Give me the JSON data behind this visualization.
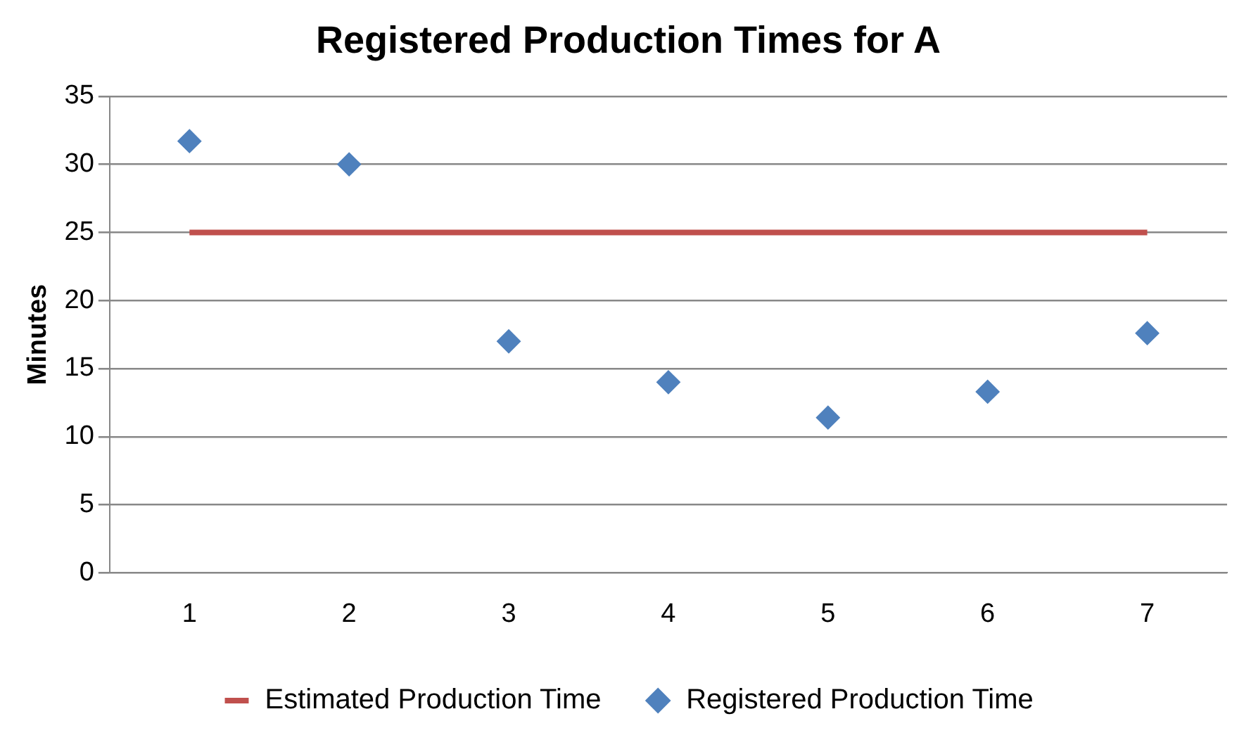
{
  "chart_data": {
    "type": "scatter",
    "title": "Registered Production Times for A",
    "ylabel": "Minutes",
    "categories": [
      "1",
      "2",
      "3",
      "4",
      "5",
      "6",
      "7"
    ],
    "series": [
      {
        "name": "Estimated Production Time",
        "type": "line",
        "color": "#c0504d",
        "marker": "none",
        "values": [
          25,
          25,
          25,
          25,
          25,
          25,
          25
        ]
      },
      {
        "name": "Registered Production Time",
        "color": "#4f81bd",
        "marker": "diamond",
        "values": [
          31.7,
          30,
          17,
          14,
          11.4,
          13.3,
          17.6
        ]
      }
    ],
    "ylim": [
      0,
      35
    ],
    "yticks": [
      0,
      5,
      10,
      15,
      20,
      25,
      30,
      35
    ],
    "grid": "y",
    "legend": "bottom"
  }
}
